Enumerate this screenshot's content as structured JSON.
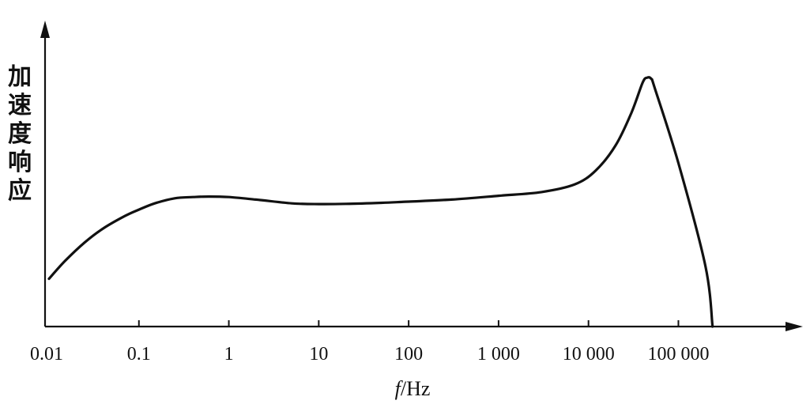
{
  "chart_data": {
    "type": "line",
    "title": "",
    "xlabel_italic": "f",
    "xlabel_rest": "/Hz",
    "ylabel": "加速度响应",
    "x_scale": "log",
    "xlim": [
      0.01,
      500000
    ],
    "ylim": [
      0,
      1
    ],
    "grid": false,
    "ticks": [
      {
        "value": 0.01,
        "label": "0.01"
      },
      {
        "value": 0.1,
        "label": "0.1"
      },
      {
        "value": 1,
        "label": "1"
      },
      {
        "value": 10,
        "label": "10"
      },
      {
        "value": 100,
        "label": "100"
      },
      {
        "value": 1000,
        "label": "1 000"
      },
      {
        "value": 10000,
        "label": "10 000"
      },
      {
        "value": 100000,
        "label": "100 000"
      }
    ],
    "series": [
      {
        "x": [
          0.01,
          0.015,
          0.025,
          0.04,
          0.07,
          0.1,
          0.15,
          0.25,
          0.4,
          0.6,
          1,
          2,
          5,
          10,
          20,
          50,
          100,
          300,
          1000,
          3000,
          7000,
          12000,
          20000,
          30000,
          40000,
          45000,
          50000,
          55000,
          100000,
          200000,
          240000
        ],
        "y": [
          0.19,
          0.26,
          0.335,
          0.39,
          0.44,
          0.465,
          0.49,
          0.51,
          0.515,
          0.517,
          0.515,
          0.505,
          0.49,
          0.487,
          0.488,
          0.492,
          0.497,
          0.505,
          0.52,
          0.535,
          0.565,
          0.62,
          0.72,
          0.85,
          0.97,
          0.99,
          0.985,
          0.945,
          0.65,
          0.24,
          0.0
        ]
      }
    ]
  }
}
